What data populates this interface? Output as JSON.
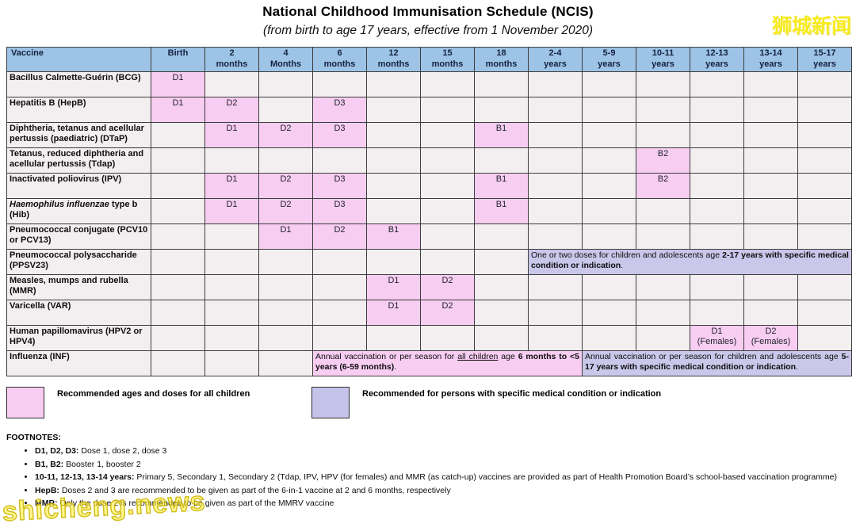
{
  "page": {
    "title": "National Childhood Immunisation Schedule (NCIS)",
    "subtitle": "(from birth to age 17 years, effective from 1 November 2020)"
  },
  "watermarks": {
    "top_right": "狮城新闻",
    "bottom_left": "shicheng.news"
  },
  "colors": {
    "header_bg": "#9DC3E6",
    "recommended_pink": "#F8CDF2",
    "medical_purple": "#CAC7EA",
    "empty_cell": "#F3EFF0",
    "border": "#3c3c3c",
    "watermark_yellow": "#F6EA1E"
  },
  "schedule": {
    "columns": [
      "Vaccine",
      "Birth",
      "2\nmonths",
      "4\nMonths",
      "6\nmonths",
      "12\nmonths",
      "15\nmonths",
      "18\nmonths",
      "2-4\nyears",
      "5-9\nyears",
      "10-11\nyears",
      "12-13\nyears",
      "13-14\nyears",
      "15-17\nyears"
    ],
    "rows": [
      {
        "id": "bcg",
        "label": "Bacillus Calmette-Guérin (BCG)",
        "cells": [
          {
            "col": 0,
            "text": "D1",
            "bg": "pink"
          }
        ]
      },
      {
        "id": "hepb",
        "label": "Hepatitis B (HepB)",
        "cells": [
          {
            "col": 0,
            "text": "D1",
            "bg": "pink"
          },
          {
            "col": 1,
            "text": "D2",
            "bg": "pink"
          },
          {
            "col": 3,
            "text": "D3",
            "bg": "pink"
          }
        ]
      },
      {
        "id": "dtap",
        "label": "Diphtheria, tetanus and acellular pertussis (paediatric) (DTaP)",
        "cells": [
          {
            "col": 1,
            "text": "D1",
            "bg": "pink"
          },
          {
            "col": 2,
            "text": "D2",
            "bg": "pink"
          },
          {
            "col": 3,
            "text": "D3",
            "bg": "pink"
          },
          {
            "col": 6,
            "text": "B1",
            "bg": "pink"
          }
        ]
      },
      {
        "id": "tdap",
        "label": "Tetanus, reduced diphtheria and acellular pertussis (Tdap)",
        "cells": [
          {
            "col": 9,
            "text": "B2",
            "bg": "pink"
          }
        ]
      },
      {
        "id": "ipv",
        "label": "Inactivated poliovirus (IPV)",
        "cells": [
          {
            "col": 1,
            "text": "D1",
            "bg": "pink"
          },
          {
            "col": 2,
            "text": "D2",
            "bg": "pink"
          },
          {
            "col": 3,
            "text": "D3",
            "bg": "pink"
          },
          {
            "col": 6,
            "text": "B1",
            "bg": "pink"
          },
          {
            "col": 9,
            "text": "B2",
            "bg": "pink"
          }
        ]
      },
      {
        "id": "hib",
        "label": "Haemophilus influenzae type b (Hib)",
        "italic_prefix": "Haemophilus influenzae",
        "cells": [
          {
            "col": 1,
            "text": "D1",
            "bg": "pink"
          },
          {
            "col": 2,
            "text": "D2",
            "bg": "pink"
          },
          {
            "col": 3,
            "text": "D3",
            "bg": "pink"
          },
          {
            "col": 6,
            "text": "B1",
            "bg": "pink"
          }
        ]
      },
      {
        "id": "pcv",
        "label": "Pneumococcal conjugate (PCV10 or PCV13)",
        "cells": [
          {
            "col": 2,
            "text": "D1",
            "bg": "pink"
          },
          {
            "col": 3,
            "text": "D2",
            "bg": "pink"
          },
          {
            "col": 4,
            "text": "B1",
            "bg": "pink"
          }
        ]
      },
      {
        "id": "ppsv",
        "label": "Pneumococcal polysaccharide (PPSV23)",
        "cells": [
          {
            "col": 7,
            "colspan": 6,
            "bg": "purple",
            "segments": [
              {
                "t": "One or two doses for children and adolescents age "
              },
              {
                "t": "2-17 years with specific medical condition or indication",
                "b": true
              },
              {
                "t": "."
              }
            ]
          }
        ]
      },
      {
        "id": "mmr",
        "label": "Measles, mumps and rubella (MMR)",
        "cells": [
          {
            "col": 4,
            "text": "D1",
            "bg": "pink"
          },
          {
            "col": 5,
            "text": "D2",
            "bg": "pink"
          }
        ]
      },
      {
        "id": "var",
        "label": "Varicella (VAR)",
        "cells": [
          {
            "col": 4,
            "text": "D1",
            "bg": "pink"
          },
          {
            "col": 5,
            "text": "D2",
            "bg": "pink"
          }
        ]
      },
      {
        "id": "hpv",
        "label": "Human papillomavirus (HPV2 or HPV4)",
        "cells": [
          {
            "col": 10,
            "text": "D1\n(Females)",
            "bg": "pink"
          },
          {
            "col": 11,
            "text": "D2\n(Females)",
            "bg": "pink"
          }
        ]
      },
      {
        "id": "inf",
        "label": "Influenza (INF)",
        "cells": [
          {
            "col": 3,
            "colspan": 5,
            "bg": "pink",
            "segments": [
              {
                "t": "Annual vaccination or per season for "
              },
              {
                "t": "all children",
                "u": true
              },
              {
                "t": " age "
              },
              {
                "t": "6 months to <5 years (6-59 months)",
                "b": true
              },
              {
                "t": "."
              }
            ]
          },
          {
            "col": 8,
            "colspan": 5,
            "bg": "purple",
            "segments": [
              {
                "t": "Annual vaccination or per season for children and adolescents age "
              },
              {
                "t": "5-17 years with specific medical condition or indication",
                "b": true
              },
              {
                "t": "."
              }
            ]
          }
        ]
      }
    ]
  },
  "legend": {
    "items": [
      {
        "swatch": "pink",
        "label": "Recommended ages and doses for all children"
      },
      {
        "swatch": "purple",
        "label": "Recommended for persons with specific medical condition or indication"
      }
    ]
  },
  "footnotes": {
    "heading": "FOOTNOTES:",
    "items": [
      {
        "prefix": "D1, D2, D3:",
        "text": "Dose 1, dose 2, dose 3"
      },
      {
        "prefix": "B1, B2:",
        "text": "Booster 1, booster 2"
      },
      {
        "prefix": "10-11, 12-13, 13-14 years:",
        "text": "Primary 5, Secondary 1, Secondary 2 (Tdap, IPV, HPV (for females) and MMR (as catch-up) vaccines are provided as part of Health Promotion Board’s school-based vaccination programme)",
        "justify": true
      },
      {
        "prefix": "HepB:",
        "text": "Doses 2 and 3 are recommended to be given as part of the 6-in-1 vaccine at 2 and 6 months, respectively"
      },
      {
        "prefix": "MMR:",
        "text": "Only the dose 2 is recommended to be given as part of the MMRV vaccine"
      }
    ]
  }
}
